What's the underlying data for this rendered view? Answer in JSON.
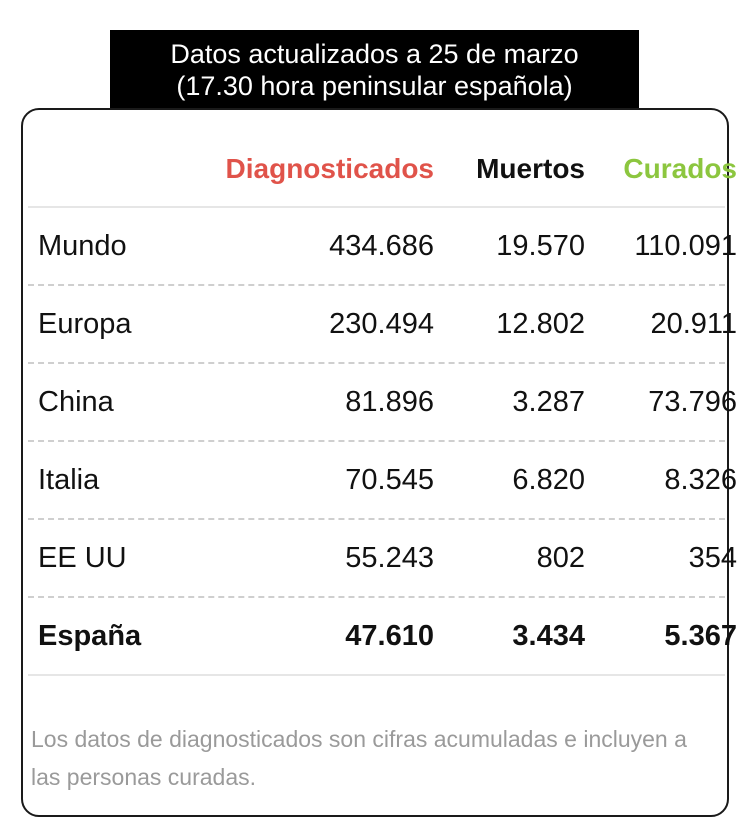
{
  "header": {
    "line1": "Datos actualizados a 25 de marzo",
    "line2": "(17.30 hora peninsular española)"
  },
  "table": {
    "columns": {
      "diagnosticados": "Diagnosticados",
      "muertos": "Muertos",
      "curados": "Curados"
    },
    "rows": [
      {
        "name": "Mundo",
        "diagnosticados": "434.686",
        "muertos": "19.570",
        "curados": "110.091"
      },
      {
        "name": "Europa",
        "diagnosticados": "230.494",
        "muertos": "12.802",
        "curados": "20.911"
      },
      {
        "name": "China",
        "diagnosticados": "81.896",
        "muertos": "3.287",
        "curados": "73.796"
      },
      {
        "name": "Italia",
        "diagnosticados": "70.545",
        "muertos": "6.820",
        "curados": "8.326"
      },
      {
        "name": "EE UU",
        "diagnosticados": "55.243",
        "muertos": "802",
        "curados": "354"
      },
      {
        "name": "España",
        "diagnosticados": "47.610",
        "muertos": "3.434",
        "curados": "5.367"
      }
    ]
  },
  "footnote": "Los datos de diagnosticados son cifras acumuladas e incluyen a las personas curadas.",
  "colors": {
    "diagnosticados": "#e0534a",
    "muertos": "#111111",
    "curados": "#8cc63f"
  }
}
